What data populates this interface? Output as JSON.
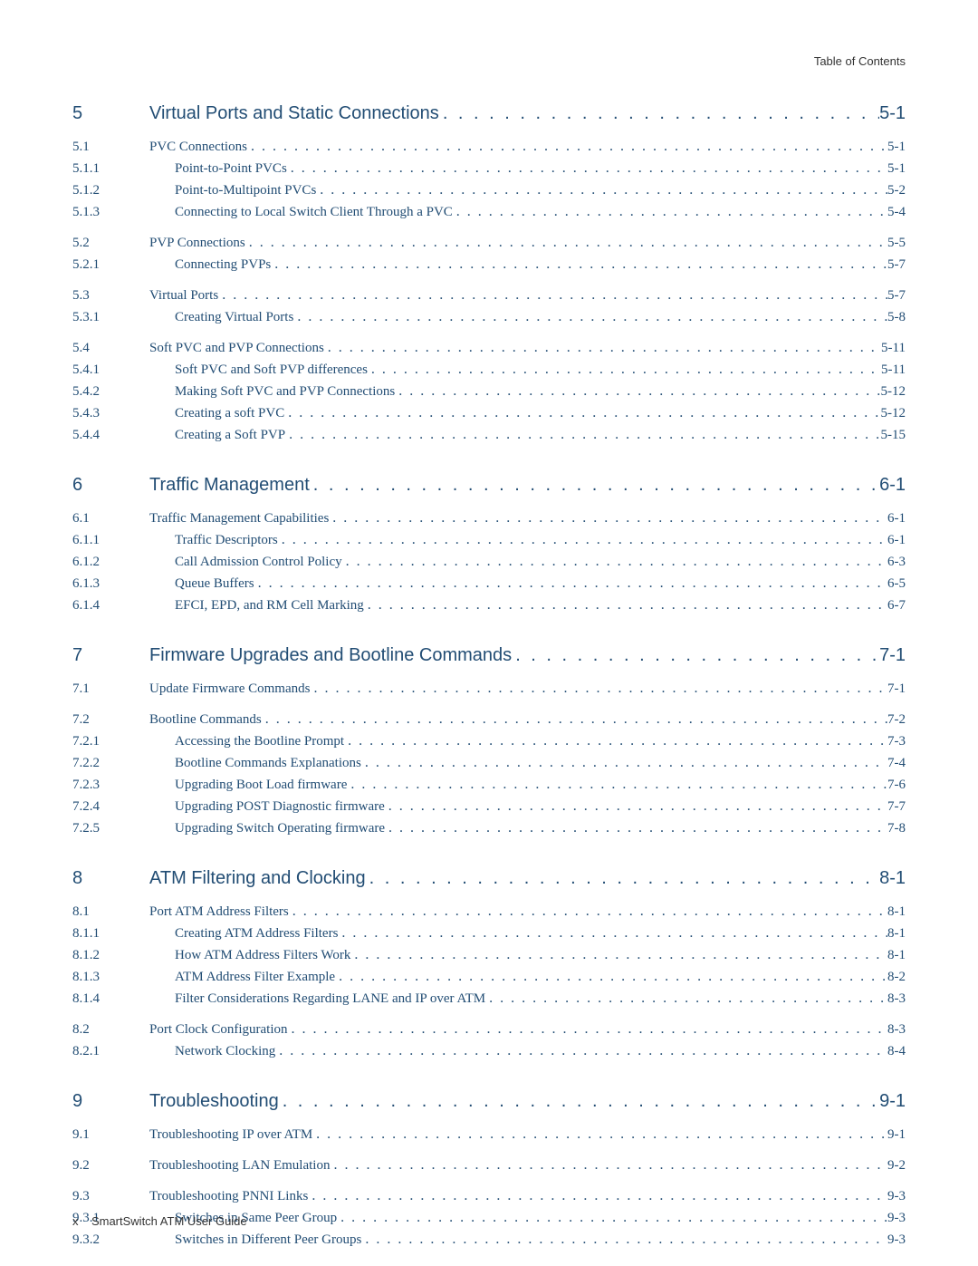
{
  "header": {
    "right_text": "Table of Contents"
  },
  "footer": {
    "page_num": "x",
    "doc_title": "SmartSwitch ATM User Guide"
  },
  "colors": {
    "link": "#224d74",
    "body_bg": "#ffffff",
    "header_text": "#333333"
  },
  "typography": {
    "body_font": "Times New Roman",
    "heading_font": "Arial",
    "chapter_fontsize": 20,
    "entry_fontsize": 15,
    "footer_fontsize": 13
  },
  "entries": [
    {
      "level": "chapter",
      "gap": "chapter",
      "num": "5",
      "title": "Virtual Ports and Static Connections",
      "page": "5-1"
    },
    {
      "level": "section",
      "gap": "group",
      "num": "5.1",
      "title": "PVC Connections",
      "page": "5-1"
    },
    {
      "level": "subsection",
      "gap": "",
      "num": "5.1.1",
      "title": "Point-to-Point PVCs",
      "page": "5-1"
    },
    {
      "level": "subsection",
      "gap": "",
      "num": "5.1.2",
      "title": "Point-to-Multipoint PVCs",
      "page": "5-2"
    },
    {
      "level": "subsection",
      "gap": "",
      "num": "5.1.3",
      "title": "Connecting to Local Switch Client Through a PVC",
      "page": "5-4"
    },
    {
      "level": "section",
      "gap": "group",
      "num": "5.2",
      "title": "PVP Connections",
      "page": "5-5"
    },
    {
      "level": "subsection",
      "gap": "",
      "num": "5.2.1",
      "title": "Connecting PVPs",
      "page": "5-7"
    },
    {
      "level": "section",
      "gap": "group",
      "num": "5.3",
      "title": "Virtual Ports",
      "page": "5-7"
    },
    {
      "level": "subsection",
      "gap": "",
      "num": "5.3.1",
      "title": "Creating Virtual Ports",
      "page": "5-8"
    },
    {
      "level": "section",
      "gap": "group",
      "num": "5.4",
      "title": "Soft PVC and PVP Connections",
      "page": "5-11"
    },
    {
      "level": "subsection",
      "gap": "",
      "num": "5.4.1",
      "title": "Soft PVC and Soft PVP differences",
      "page": "5-11"
    },
    {
      "level": "subsection",
      "gap": "",
      "num": "5.4.2",
      "title": "Making Soft PVC and PVP Connections",
      "page": "5-12"
    },
    {
      "level": "subsection",
      "gap": "",
      "num": "5.4.3",
      "title": "Creating a soft PVC",
      "page": "5-12"
    },
    {
      "level": "subsection",
      "gap": "",
      "num": "5.4.4",
      "title": "Creating a Soft PVP",
      "page": "5-15"
    },
    {
      "level": "chapter",
      "gap": "chapter",
      "num": "6",
      "title": "Traffic Management",
      "page": "6-1"
    },
    {
      "level": "section",
      "gap": "group",
      "num": "6.1",
      "title": "Traffic Management Capabilities",
      "page": "6-1"
    },
    {
      "level": "subsection",
      "gap": "",
      "num": "6.1.1",
      "title": "Traffic Descriptors",
      "page": "6-1"
    },
    {
      "level": "subsection",
      "gap": "",
      "num": "6.1.2",
      "title": "Call Admission Control Policy",
      "page": "6-3"
    },
    {
      "level": "subsection",
      "gap": "",
      "num": "6.1.3",
      "title": "Queue Buffers",
      "page": "6-5"
    },
    {
      "level": "subsection",
      "gap": "",
      "num": "6.1.4",
      "title": "EFCI, EPD, and RM Cell Marking",
      "page": "6-7"
    },
    {
      "level": "chapter",
      "gap": "chapter",
      "num": "7",
      "title": "Firmware Upgrades and Bootline Commands",
      "page": "7-1"
    },
    {
      "level": "section",
      "gap": "group",
      "num": "7.1",
      "title": "Update Firmware Commands",
      "page": "7-1"
    },
    {
      "level": "section",
      "gap": "group",
      "num": "7.2",
      "title": "Bootline Commands",
      "page": "7-2"
    },
    {
      "level": "subsection",
      "gap": "",
      "num": "7.2.1",
      "title": "Accessing the Bootline Prompt",
      "page": "7-3"
    },
    {
      "level": "subsection",
      "gap": "",
      "num": "7.2.2",
      "title": "Bootline Commands Explanations",
      "page": "7-4"
    },
    {
      "level": "subsection",
      "gap": "",
      "num": "7.2.3",
      "title": "Upgrading Boot Load firmware",
      "page": "7-6"
    },
    {
      "level": "subsection",
      "gap": "",
      "num": "7.2.4",
      "title": "Upgrading POST Diagnostic firmware",
      "page": "7-7"
    },
    {
      "level": "subsection",
      "gap": "",
      "num": "7.2.5",
      "title": "Upgrading Switch Operating firmware",
      "page": "7-8"
    },
    {
      "level": "chapter",
      "gap": "chapter",
      "num": "8",
      "title": "ATM Filtering and Clocking",
      "page": "8-1"
    },
    {
      "level": "section",
      "gap": "group",
      "num": "8.1",
      "title": "Port ATM Address Filters",
      "page": "8-1"
    },
    {
      "level": "subsection",
      "gap": "",
      "num": "8.1.1",
      "title": "Creating ATM Address Filters",
      "page": "8-1"
    },
    {
      "level": "subsection",
      "gap": "",
      "num": "8.1.2",
      "title": "How ATM Address Filters Work",
      "page": "8-1"
    },
    {
      "level": "subsection",
      "gap": "",
      "num": "8.1.3",
      "title": "ATM Address Filter Example",
      "page": "8-2"
    },
    {
      "level": "subsection",
      "gap": "",
      "num": "8.1.4",
      "title": "Filter Considerations Regarding LANE and IP over ATM",
      "page": "8-3"
    },
    {
      "level": "section",
      "gap": "group",
      "num": "8.2",
      "title": "Port Clock Configuration",
      "page": "8-3"
    },
    {
      "level": "subsection",
      "gap": "",
      "num": "8.2.1",
      "title": "Network Clocking",
      "page": "8-4"
    },
    {
      "level": "chapter",
      "gap": "chapter",
      "num": "9",
      "title": "Troubleshooting",
      "page": "9-1"
    },
    {
      "level": "section",
      "gap": "group",
      "num": "9.1",
      "title": "Troubleshooting IP over ATM",
      "page": "9-1"
    },
    {
      "level": "section",
      "gap": "group",
      "num": "9.2",
      "title": "Troubleshooting LAN Emulation",
      "page": "9-2"
    },
    {
      "level": "section",
      "gap": "group",
      "num": "9.3",
      "title": "Troubleshooting PNNI Links",
      "page": "9-3"
    },
    {
      "level": "subsection",
      "gap": "",
      "num": "9.3.1",
      "title": "Switches in Same Peer Group",
      "page": "9-3"
    },
    {
      "level": "subsection",
      "gap": "",
      "num": "9.3.2",
      "title": "Switches in Different Peer Groups",
      "page": "9-3"
    }
  ]
}
